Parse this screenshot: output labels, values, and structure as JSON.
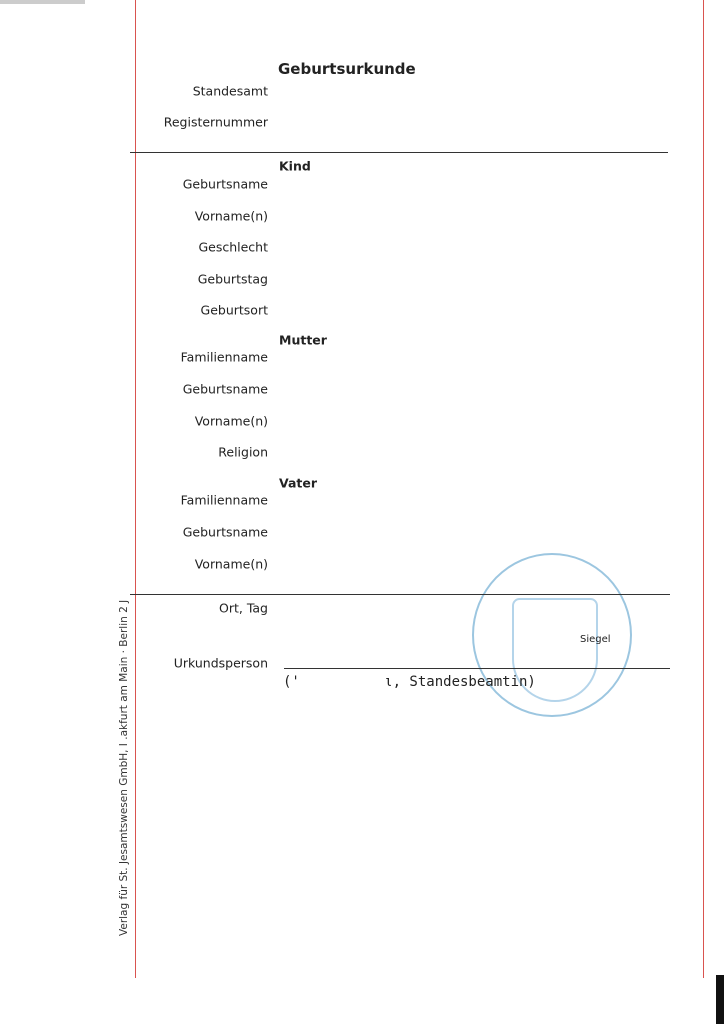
{
  "document": {
    "title": "Geburtsurkunde",
    "header_fields": [
      {
        "label": "Standesamt"
      },
      {
        "label": "Registernummer"
      }
    ],
    "sections": {
      "kind": {
        "heading": "Kind",
        "fields": [
          "Geburtsname",
          "Vorname(n)",
          "Geschlecht",
          "Geburtstag",
          "Geburtsort"
        ]
      },
      "mutter": {
        "heading": "Mutter",
        "fields": [
          "Familienname",
          "Geburtsname",
          "Vorname(n)",
          "Religion"
        ]
      },
      "vater": {
        "heading": "Vater",
        "fields": [
          "Familienname",
          "Geburtsname",
          "Vorname(n)"
        ]
      }
    },
    "footer": {
      "place_date_label": "Ort, Tag",
      "official_label": "Urkundsperson",
      "seal_label": "Siegel",
      "official_typed": "('          ι, Standesbeamtin)"
    },
    "publisher_margin": "Verlag für St.  Jesamtswesen GmbH, I  .akfurt am Main · Berlin 2  J"
  },
  "colors": {
    "margin_line": "#d9534f",
    "seal": "#9cc6e0"
  }
}
